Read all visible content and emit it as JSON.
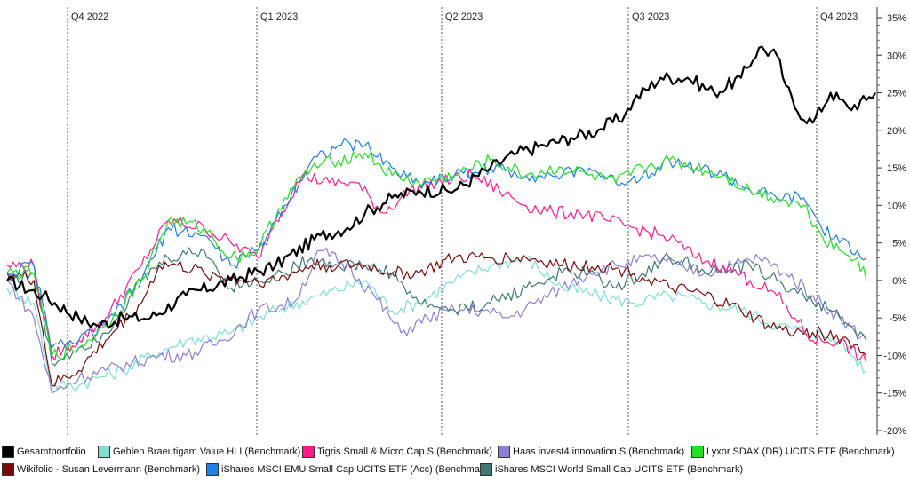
{
  "chart_data": {
    "type": "line",
    "quarters": [
      "Q4 2022",
      "Q1 2023",
      "Q2 2023",
      "Q3 2023",
      "Q4 2023"
    ],
    "y_ticks": [
      "35%",
      "30%",
      "25%",
      "20%",
      "15%",
      "10%",
      "5%",
      "0%",
      "-5%",
      "-10%",
      "-15%",
      "-20%"
    ],
    "ylim": [
      -20,
      35
    ],
    "grid": "vertical dashed at quarter starts",
    "legend_position": "bottom",
    "series": [
      {
        "name": "Gesamtportfolio",
        "color": "#000000",
        "points": [
          [
            0,
            0
          ],
          [
            4,
            -2
          ],
          [
            8,
            -5
          ],
          [
            10,
            -6
          ],
          [
            13,
            -5
          ],
          [
            16,
            -5
          ],
          [
            20,
            -2
          ],
          [
            25,
            0
          ],
          [
            30,
            2
          ],
          [
            35,
            6
          ],
          [
            38,
            7
          ],
          [
            40,
            9
          ],
          [
            43,
            11
          ],
          [
            46,
            12
          ],
          [
            50,
            12
          ],
          [
            54,
            15
          ],
          [
            57,
            17
          ],
          [
            60,
            18
          ],
          [
            63,
            19
          ],
          [
            66,
            20
          ],
          [
            69,
            22
          ],
          [
            70,
            24
          ],
          [
            73,
            27
          ],
          [
            76,
            27
          ],
          [
            79,
            25
          ],
          [
            82,
            27
          ],
          [
            84,
            31
          ],
          [
            86,
            30
          ],
          [
            87,
            26
          ],
          [
            88,
            23
          ],
          [
            90,
            21
          ],
          [
            92,
            25
          ],
          [
            94,
            23
          ],
          [
            96,
            24
          ],
          [
            97,
            25
          ]
        ]
      },
      {
        "name": "Gehlen Braeutigam Value HI I (Benchmark)",
        "color": "#7fdfcf",
        "points": [
          [
            0,
            -1
          ],
          [
            3,
            -3
          ],
          [
            5,
            -14
          ],
          [
            8,
            -14
          ],
          [
            10,
            -13
          ],
          [
            13,
            -12
          ],
          [
            16,
            -10
          ],
          [
            20,
            -8
          ],
          [
            25,
            -7
          ],
          [
            30,
            -4
          ],
          [
            35,
            -2
          ],
          [
            40,
            0
          ],
          [
            43,
            -4
          ],
          [
            46,
            -3
          ],
          [
            50,
            0
          ],
          [
            54,
            2
          ],
          [
            58,
            3
          ],
          [
            62,
            -1
          ],
          [
            66,
            -2
          ],
          [
            70,
            -3
          ],
          [
            74,
            -2
          ],
          [
            78,
            -3
          ],
          [
            82,
            -4
          ],
          [
            86,
            -6
          ],
          [
            90,
            -7
          ],
          [
            93,
            -8
          ],
          [
            96,
            -12
          ]
        ]
      },
      {
        "name": "Tigris Small & Micro Cap S (Benchmark)",
        "color": "#ff1a8c",
        "points": [
          [
            0,
            2
          ],
          [
            3,
            2
          ],
          [
            5,
            -10
          ],
          [
            8,
            -8
          ],
          [
            11,
            -5
          ],
          [
            15,
            2
          ],
          [
            18,
            8
          ],
          [
            22,
            7
          ],
          [
            25,
            5
          ],
          [
            28,
            3
          ],
          [
            30,
            8
          ],
          [
            33,
            14
          ],
          [
            36,
            13
          ],
          [
            39,
            13
          ],
          [
            42,
            9
          ],
          [
            45,
            12
          ],
          [
            48,
            13
          ],
          [
            52,
            14
          ],
          [
            55,
            12
          ],
          [
            58,
            10
          ],
          [
            61,
            9
          ],
          [
            64,
            9
          ],
          [
            67,
            8
          ],
          [
            70,
            7
          ],
          [
            73,
            6
          ],
          [
            75,
            5
          ],
          [
            77,
            3
          ],
          [
            80,
            2
          ],
          [
            83,
            0
          ],
          [
            86,
            -2
          ],
          [
            88,
            -5
          ],
          [
            90,
            -8
          ],
          [
            93,
            -8
          ],
          [
            96,
            -11
          ]
        ]
      },
      {
        "name": "Haas invest4 innovation S (Benchmark)",
        "color": "#8b7fdc",
        "points": [
          [
            0,
            0
          ],
          [
            3,
            -5
          ],
          [
            5,
            -15
          ],
          [
            8,
            -13
          ],
          [
            11,
            -12
          ],
          [
            14,
            -11
          ],
          [
            17,
            -10
          ],
          [
            20,
            -10
          ],
          [
            24,
            -8
          ],
          [
            28,
            -4
          ],
          [
            32,
            -3
          ],
          [
            35,
            4
          ],
          [
            38,
            2
          ],
          [
            41,
            -2
          ],
          [
            44,
            -7
          ],
          [
            47,
            -5
          ],
          [
            50,
            -4
          ],
          [
            53,
            -4
          ],
          [
            56,
            -5
          ],
          [
            59,
            -3
          ],
          [
            62,
            -1
          ],
          [
            65,
            1
          ],
          [
            68,
            2
          ],
          [
            72,
            3
          ],
          [
            75,
            2
          ],
          [
            78,
            1
          ],
          [
            81,
            2
          ],
          [
            84,
            3
          ],
          [
            87,
            1
          ],
          [
            90,
            -2
          ],
          [
            93,
            -5
          ],
          [
            96,
            -8
          ]
        ]
      },
      {
        "name": "Lyxor SDAX (DR) UCITS ETF (Benchmark)",
        "color": "#22e022",
        "points": [
          [
            0,
            1
          ],
          [
            3,
            1
          ],
          [
            5,
            -10
          ],
          [
            8,
            -9
          ],
          [
            11,
            -6
          ],
          [
            15,
            0
          ],
          [
            18,
            8
          ],
          [
            22,
            7
          ],
          [
            25,
            3
          ],
          [
            28,
            4
          ],
          [
            31,
            11
          ],
          [
            34,
            15
          ],
          [
            37,
            16
          ],
          [
            40,
            17
          ],
          [
            43,
            14
          ],
          [
            46,
            13
          ],
          [
            50,
            14
          ],
          [
            54,
            16
          ],
          [
            58,
            14
          ],
          [
            62,
            15
          ],
          [
            65,
            14
          ],
          [
            68,
            13
          ],
          [
            71,
            15
          ],
          [
            74,
            16
          ],
          [
            77,
            15
          ],
          [
            80,
            14
          ],
          [
            83,
            12
          ],
          [
            86,
            11
          ],
          [
            89,
            10
          ],
          [
            91,
            6
          ],
          [
            93,
            4
          ],
          [
            95,
            3
          ],
          [
            96,
            0
          ]
        ]
      },
      {
        "name": "Wikifolio - Susan Levermann (Benchmark)",
        "color": "#7a0a0a",
        "points": [
          [
            0,
            1
          ],
          [
            3,
            0
          ],
          [
            5,
            -14
          ],
          [
            8,
            -12
          ],
          [
            11,
            -8
          ],
          [
            15,
            -3
          ],
          [
            17,
            2
          ],
          [
            19,
            2
          ],
          [
            22,
            1
          ],
          [
            26,
            0
          ],
          [
            30,
            0
          ],
          [
            34,
            2
          ],
          [
            37,
            2
          ],
          [
            40,
            2
          ],
          [
            43,
            1
          ],
          [
            46,
            1
          ],
          [
            50,
            3
          ],
          [
            54,
            3
          ],
          [
            58,
            3
          ],
          [
            62,
            2
          ],
          [
            66,
            2
          ],
          [
            70,
            1
          ],
          [
            74,
            -1
          ],
          [
            78,
            -2
          ],
          [
            82,
            -4
          ],
          [
            85,
            -6
          ],
          [
            88,
            -7
          ],
          [
            91,
            -7
          ],
          [
            94,
            -8
          ],
          [
            96,
            -10
          ]
        ]
      },
      {
        "name": "iShares MSCI EMU Small Cap UCITS ETF (Acc) (Benchmark)",
        "color": "#1e7fe6",
        "points": [
          [
            0,
            1
          ],
          [
            3,
            2
          ],
          [
            5,
            -9
          ],
          [
            8,
            -8
          ],
          [
            11,
            -6
          ],
          [
            15,
            0
          ],
          [
            18,
            7
          ],
          [
            22,
            6
          ],
          [
            25,
            2
          ],
          [
            28,
            4
          ],
          [
            31,
            10
          ],
          [
            34,
            16
          ],
          [
            37,
            18
          ],
          [
            40,
            18
          ],
          [
            43,
            15
          ],
          [
            46,
            13
          ],
          [
            50,
            14
          ],
          [
            54,
            15
          ],
          [
            58,
            14
          ],
          [
            62,
            14
          ],
          [
            65,
            15
          ],
          [
            68,
            13
          ],
          [
            71,
            14
          ],
          [
            74,
            16
          ],
          [
            77,
            15
          ],
          [
            80,
            14
          ],
          [
            83,
            12
          ],
          [
            86,
            11
          ],
          [
            89,
            11
          ],
          [
            91,
            7
          ],
          [
            93,
            5
          ],
          [
            95,
            4
          ],
          [
            96,
            3
          ]
        ]
      },
      {
        "name": "iShares MSCI World Small Cap UCITS ETF (Benchmark)",
        "color": "#3f7a72",
        "points": [
          [
            0,
            0
          ],
          [
            3,
            1
          ],
          [
            5,
            -11
          ],
          [
            8,
            -9
          ],
          [
            11,
            -7
          ],
          [
            15,
            0
          ],
          [
            18,
            3
          ],
          [
            22,
            4
          ],
          [
            25,
            -1
          ],
          [
            28,
            0
          ],
          [
            31,
            1
          ],
          [
            34,
            3
          ],
          [
            37,
            2
          ],
          [
            40,
            2
          ],
          [
            43,
            1
          ],
          [
            46,
            -3
          ],
          [
            50,
            -4
          ],
          [
            54,
            -3
          ],
          [
            58,
            -1
          ],
          [
            62,
            1
          ],
          [
            65,
            1
          ],
          [
            68,
            -1
          ],
          [
            71,
            1
          ],
          [
            74,
            3
          ],
          [
            77,
            2
          ],
          [
            80,
            1
          ],
          [
            83,
            2
          ],
          [
            86,
            0
          ],
          [
            89,
            -2
          ],
          [
            92,
            -4
          ],
          [
            94,
            -6
          ],
          [
            96,
            -8
          ]
        ]
      }
    ]
  }
}
